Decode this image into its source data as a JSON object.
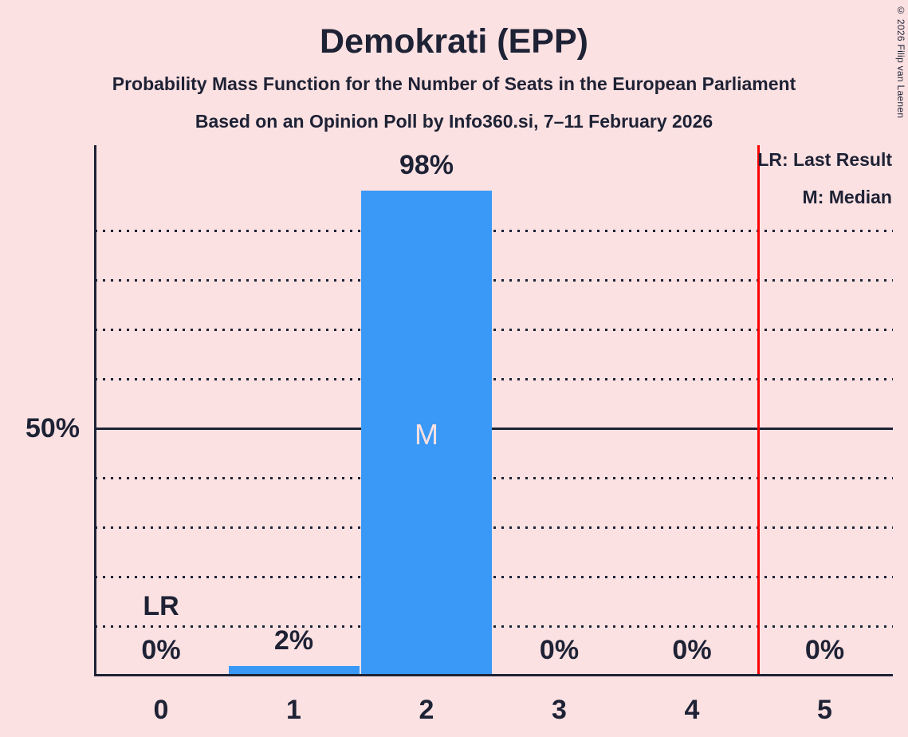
{
  "page": {
    "background_color": "#FCE1E2",
    "ink_color": "#1E2235",
    "bar_color": "#3A99F7",
    "marker_color": "#FF0000"
  },
  "header": {
    "title": "Demokrati (EPP)",
    "subtitle1": "Probability Mass Function for the Number of Seats in the European Parliament",
    "subtitle2": "Based on an Opinion Poll by Info360.si, 7–11 February 2026",
    "copyright": "© 2026 Filip van Laenen"
  },
  "legend": {
    "lr_label": "LR: Last Result",
    "m_label": "M: Median"
  },
  "chart_data": {
    "type": "bar",
    "title": "Demokrati (EPP)",
    "xlabel": "",
    "ylabel": "",
    "categories": [
      "0",
      "1",
      "2",
      "3",
      "4",
      "5"
    ],
    "values": [
      0,
      2,
      98,
      0,
      0,
      0
    ],
    "value_labels": [
      "0%",
      "2%",
      "98%",
      "0%",
      "0%",
      "0%"
    ],
    "ylim": [
      0,
      107
    ],
    "y_axis_tick_label": "50%",
    "y_axis_tick_value": 50,
    "gridlines_pct": [
      10,
      20,
      30,
      40,
      50,
      60,
      70,
      80,
      90
    ],
    "solid_gridline_pct": 50,
    "grid_style": "dotted",
    "legend_position": "top-right",
    "median_label": "M",
    "median_column_index": 2,
    "last_result_label": "LR",
    "last_result_column_index": 0,
    "last_result_marker_x": 4.5,
    "bar_color": "#3A99F7",
    "marker_line_color": "#FF0000",
    "background_color": "#FCE1E2"
  }
}
